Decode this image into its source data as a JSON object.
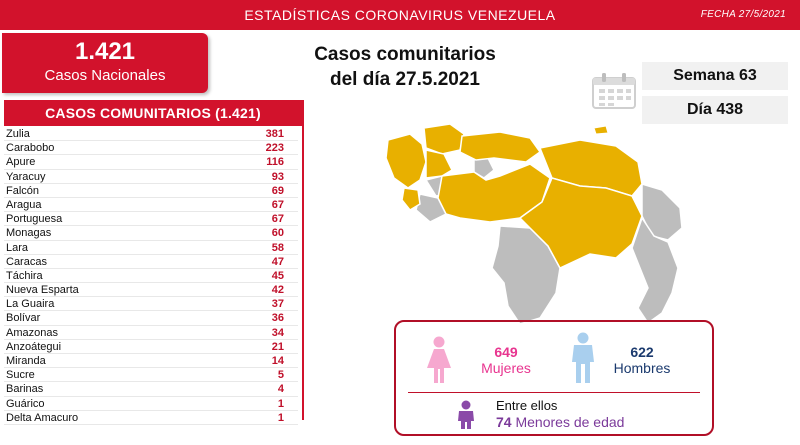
{
  "header": {
    "title": "ESTADÍSTICAS CORONAVIRUS VENEZUELA",
    "date": "FECHA 27/5/2021"
  },
  "national": {
    "count": "1.421",
    "label": "Casos Nacionales"
  },
  "heading": {
    "line1": "Casos comunitarios",
    "line2": "del día 27.5.2021"
  },
  "period": {
    "week": "Semana 63",
    "day": "Día 438"
  },
  "community_list": {
    "title": "CASOS COMUNITARIOS (1.421)",
    "items": [
      {
        "name": "Zulia",
        "value": "381"
      },
      {
        "name": "Carabobo",
        "value": "223"
      },
      {
        "name": "Apure",
        "value": "116"
      },
      {
        "name": "Yaracuy",
        "value": "93"
      },
      {
        "name": "Falcón",
        "value": "69"
      },
      {
        "name": "Aragua",
        "value": "67"
      },
      {
        "name": "Portuguesa",
        "value": "67"
      },
      {
        "name": "Monagas",
        "value": "60"
      },
      {
        "name": "Lara",
        "value": "58"
      },
      {
        "name": "Caracas",
        "value": "47"
      },
      {
        "name": "Táchira",
        "value": "45"
      },
      {
        "name": "Nueva Esparta",
        "value": "42"
      },
      {
        "name": "La Guaira",
        "value": "37"
      },
      {
        "name": "Bolívar",
        "value": "36"
      },
      {
        "name": "Amazonas",
        "value": "34"
      },
      {
        "name": "Anzoátegui",
        "value": "21"
      },
      {
        "name": "Miranda",
        "value": "14"
      },
      {
        "name": "Sucre",
        "value": "5"
      },
      {
        "name": "Barinas",
        "value": "4"
      },
      {
        "name": "Guárico",
        "value": "1"
      },
      {
        "name": "Delta Amacuro",
        "value": "1"
      }
    ]
  },
  "gender": {
    "women_count": "649",
    "women_label": "Mujeres",
    "men_count": "622",
    "men_label": "Hombres",
    "between_label": "Entre ellos",
    "minors_count": "74",
    "minors_label": "Menores de edad"
  },
  "colors": {
    "brand_red": "#d2122c",
    "map_affected": "#e8b000",
    "map_unaffected": "#bdbdbd",
    "women": "#e8348f",
    "men": "#1b3a6e",
    "minors": "#7b3a9a"
  },
  "icons": [
    "calendar-icon",
    "woman-icon",
    "man-icon",
    "child-icon"
  ]
}
